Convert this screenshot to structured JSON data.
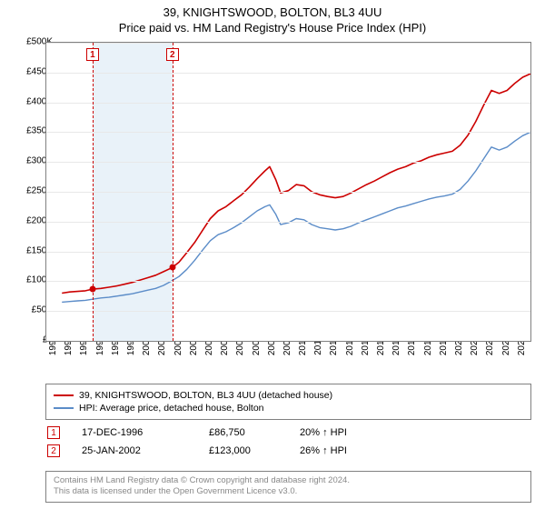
{
  "title": "39, KNIGHTSWOOD, BOLTON, BL3 4UU",
  "subtitle": "Price paid vs. HM Land Registry's House Price Index (HPI)",
  "chart": {
    "type": "line",
    "background_color": "#ffffff",
    "grid_color": "#e8e8e8",
    "border_color": "#808080",
    "x_start": 1994,
    "x_end": 2025,
    "y_min": 0,
    "y_max": 500000,
    "y_tick_step": 50000,
    "y_tick_labels": [
      "£0",
      "£50K",
      "£100K",
      "£150K",
      "£200K",
      "£250K",
      "£300K",
      "£350K",
      "£400K",
      "£450K",
      "£500K"
    ],
    "x_ticks": [
      1994,
      1995,
      1996,
      1997,
      1998,
      1999,
      2000,
      2001,
      2002,
      2003,
      2004,
      2005,
      2006,
      2007,
      2008,
      2009,
      2010,
      2011,
      2012,
      2013,
      2014,
      2015,
      2016,
      2017,
      2018,
      2019,
      2020,
      2021,
      2022,
      2023,
      2024
    ],
    "shade_band": {
      "from": 1996.96,
      "to": 2002.07,
      "color": "#e9f2f9"
    },
    "marker_lines": [
      {
        "id": "1",
        "x": 1996.96,
        "color": "#cc0000"
      },
      {
        "id": "2",
        "x": 2002.07,
        "color": "#cc0000"
      }
    ],
    "marker_points": [
      {
        "x": 1996.96,
        "y": 86750,
        "color": "#cc0000"
      },
      {
        "x": 2002.07,
        "y": 123000,
        "color": "#cc0000"
      }
    ],
    "series": [
      {
        "name": "39, KNIGHTSWOOD, BOLTON, BL3 4UU (detached house)",
        "color": "#cc0000",
        "line_width": 1.6,
        "data": [
          [
            1995.0,
            80000
          ],
          [
            1995.5,
            82000
          ],
          [
            1996.0,
            83000
          ],
          [
            1996.5,
            84000
          ],
          [
            1996.96,
            86750
          ],
          [
            1997.5,
            88000
          ],
          [
            1998.0,
            90000
          ],
          [
            1998.5,
            92000
          ],
          [
            1999.0,
            95000
          ],
          [
            1999.5,
            98000
          ],
          [
            2000.0,
            102000
          ],
          [
            2000.5,
            106000
          ],
          [
            2001.0,
            110000
          ],
          [
            2001.5,
            116000
          ],
          [
            2002.07,
            123000
          ],
          [
            2002.5,
            132000
          ],
          [
            2003.0,
            148000
          ],
          [
            2003.5,
            165000
          ],
          [
            2004.0,
            185000
          ],
          [
            2004.5,
            205000
          ],
          [
            2005.0,
            218000
          ],
          [
            2005.5,
            225000
          ],
          [
            2006.0,
            235000
          ],
          [
            2006.5,
            245000
          ],
          [
            2007.0,
            258000
          ],
          [
            2007.5,
            272000
          ],
          [
            2008.0,
            285000
          ],
          [
            2008.3,
            292000
          ],
          [
            2008.7,
            270000
          ],
          [
            2009.0,
            248000
          ],
          [
            2009.5,
            252000
          ],
          [
            2010.0,
            262000
          ],
          [
            2010.5,
            260000
          ],
          [
            2011.0,
            250000
          ],
          [
            2011.5,
            245000
          ],
          [
            2012.0,
            242000
          ],
          [
            2012.5,
            240000
          ],
          [
            2013.0,
            242000
          ],
          [
            2013.5,
            248000
          ],
          [
            2014.0,
            255000
          ],
          [
            2014.5,
            262000
          ],
          [
            2015.0,
            268000
          ],
          [
            2015.5,
            275000
          ],
          [
            2016.0,
            282000
          ],
          [
            2016.5,
            288000
          ],
          [
            2017.0,
            292000
          ],
          [
            2017.5,
            298000
          ],
          [
            2018.0,
            302000
          ],
          [
            2018.5,
            308000
          ],
          [
            2019.0,
            312000
          ],
          [
            2019.5,
            315000
          ],
          [
            2020.0,
            318000
          ],
          [
            2020.5,
            328000
          ],
          [
            2021.0,
            345000
          ],
          [
            2021.5,
            368000
          ],
          [
            2022.0,
            395000
          ],
          [
            2022.5,
            420000
          ],
          [
            2023.0,
            415000
          ],
          [
            2023.5,
            420000
          ],
          [
            2024.0,
            432000
          ],
          [
            2024.5,
            442000
          ],
          [
            2025.0,
            448000
          ]
        ]
      },
      {
        "name": "HPI: Average price, detached house, Bolton",
        "color": "#5b8cc8",
        "line_width": 1.4,
        "data": [
          [
            1995.0,
            65000
          ],
          [
            1995.5,
            66000
          ],
          [
            1996.0,
            67000
          ],
          [
            1996.5,
            68000
          ],
          [
            1997.0,
            70000
          ],
          [
            1997.5,
            72000
          ],
          [
            1998.0,
            73000
          ],
          [
            1998.5,
            75000
          ],
          [
            1999.0,
            77000
          ],
          [
            1999.5,
            79000
          ],
          [
            2000.0,
            82000
          ],
          [
            2000.5,
            85000
          ],
          [
            2001.0,
            88000
          ],
          [
            2001.5,
            93000
          ],
          [
            2002.0,
            100000
          ],
          [
            2002.5,
            108000
          ],
          [
            2003.0,
            120000
          ],
          [
            2003.5,
            135000
          ],
          [
            2004.0,
            152000
          ],
          [
            2004.5,
            168000
          ],
          [
            2005.0,
            178000
          ],
          [
            2005.5,
            183000
          ],
          [
            2006.0,
            190000
          ],
          [
            2006.5,
            198000
          ],
          [
            2007.0,
            208000
          ],
          [
            2007.5,
            218000
          ],
          [
            2008.0,
            225000
          ],
          [
            2008.3,
            228000
          ],
          [
            2008.7,
            212000
          ],
          [
            2009.0,
            195000
          ],
          [
            2009.5,
            198000
          ],
          [
            2010.0,
            205000
          ],
          [
            2010.5,
            203000
          ],
          [
            2011.0,
            195000
          ],
          [
            2011.5,
            190000
          ],
          [
            2012.0,
            188000
          ],
          [
            2012.5,
            186000
          ],
          [
            2013.0,
            188000
          ],
          [
            2013.5,
            192000
          ],
          [
            2014.0,
            198000
          ],
          [
            2014.5,
            203000
          ],
          [
            2015.0,
            208000
          ],
          [
            2015.5,
            213000
          ],
          [
            2016.0,
            218000
          ],
          [
            2016.5,
            223000
          ],
          [
            2017.0,
            226000
          ],
          [
            2017.5,
            230000
          ],
          [
            2018.0,
            234000
          ],
          [
            2018.5,
            238000
          ],
          [
            2019.0,
            241000
          ],
          [
            2019.5,
            243000
          ],
          [
            2020.0,
            246000
          ],
          [
            2020.5,
            254000
          ],
          [
            2021.0,
            268000
          ],
          [
            2021.5,
            285000
          ],
          [
            2022.0,
            305000
          ],
          [
            2022.5,
            325000
          ],
          [
            2023.0,
            320000
          ],
          [
            2023.5,
            325000
          ],
          [
            2024.0,
            335000
          ],
          [
            2024.5,
            344000
          ],
          [
            2025.0,
            350000
          ]
        ]
      }
    ]
  },
  "legend": {
    "items": [
      {
        "color": "#cc0000",
        "label": "39, KNIGHTSWOOD, BOLTON, BL3 4UU (detached house)"
      },
      {
        "color": "#5b8cc8",
        "label": "HPI: Average price, detached house, Bolton"
      }
    ]
  },
  "transactions": [
    {
      "id": "1",
      "date": "17-DEC-1996",
      "price": "£86,750",
      "delta": "20% ↑ HPI"
    },
    {
      "id": "2",
      "date": "25-JAN-2002",
      "price": "£123,000",
      "delta": "26% ↑ HPI"
    }
  ],
  "footer": {
    "line1": "Contains HM Land Registry data © Crown copyright and database right 2024.",
    "line2": "This data is licensed under the Open Government Licence v3.0."
  }
}
